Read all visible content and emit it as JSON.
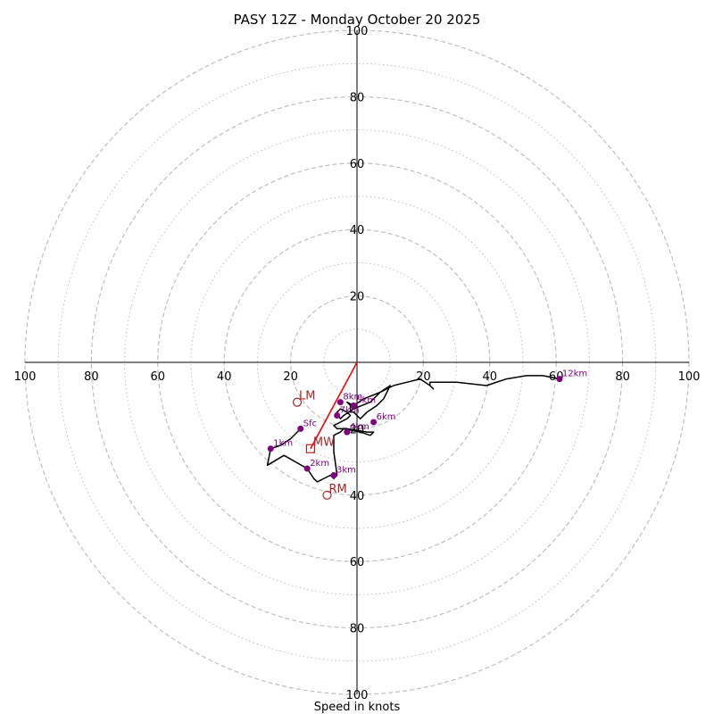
{
  "chart_data": {
    "type": "hodograph",
    "title": "PASY 12Z - Monday October 20 2025",
    "xlabel": "Speed in knots",
    "max_speed": 100,
    "tick_values": [
      20,
      40,
      60,
      80,
      100
    ],
    "major_rings": [
      20,
      40,
      60,
      80,
      100
    ],
    "minor_rings": [
      10,
      30,
      50,
      70,
      90
    ],
    "hodograph_path": [
      [
        -17,
        -20
      ],
      [
        -20,
        -23
      ],
      [
        -23,
        -25
      ],
      [
        -26,
        -26
      ],
      [
        -27,
        -31
      ],
      [
        -22,
        -28
      ],
      [
        -15,
        -32
      ],
      [
        -13,
        -35
      ],
      [
        -12,
        -36
      ],
      [
        -8,
        -34
      ],
      [
        -7,
        -35
      ],
      [
        -6,
        -34
      ],
      [
        -7,
        -27
      ],
      [
        -7,
        -22
      ],
      [
        -5,
        -21
      ],
      [
        -4,
        -20
      ],
      [
        1,
        -21
      ],
      [
        4,
        -22
      ],
      [
        5,
        -21
      ],
      [
        3,
        -21
      ],
      [
        -3,
        -20
      ],
      [
        -6,
        -20
      ],
      [
        -7,
        -19
      ],
      [
        -5,
        -18
      ],
      [
        -3,
        -17
      ],
      [
        -2,
        -16
      ],
      [
        -3,
        -15
      ],
      [
        -5,
        -14
      ],
      [
        -6,
        -15
      ],
      [
        -5,
        -17
      ],
      [
        -4,
        -16
      ],
      [
        -1,
        -14
      ],
      [
        4,
        -12
      ],
      [
        7,
        -9
      ],
      [
        10,
        -7
      ],
      [
        8,
        -11
      ],
      [
        6,
        -13
      ],
      [
        3,
        -15
      ],
      [
        1,
        -17
      ],
      [
        0,
        -16
      ],
      [
        -1,
        -15
      ],
      [
        -2,
        -15
      ],
      [
        -2,
        -13
      ],
      [
        -3,
        -12
      ],
      [
        -1,
        -13
      ],
      [
        2,
        -11
      ],
      [
        7,
        -9
      ],
      [
        11,
        -7
      ],
      [
        15,
        -6
      ],
      [
        19,
        -5
      ],
      [
        22,
        -7
      ],
      [
        23,
        -8
      ],
      [
        22,
        -7
      ],
      [
        22,
        -6
      ],
      [
        30,
        -6
      ],
      [
        39,
        -7
      ],
      [
        45,
        -5
      ],
      [
        51,
        -4
      ],
      [
        56,
        -4
      ],
      [
        61,
        -5
      ]
    ],
    "height_markers": [
      {
        "label": "Sfc",
        "u": -17,
        "v": -20
      },
      {
        "label": "1km",
        "u": -26,
        "v": -26
      },
      {
        "label": "2km",
        "u": -15,
        "v": -32
      },
      {
        "label": "3km",
        "u": -7,
        "v": -34
      },
      {
        "label": "4km",
        "u": -3,
        "v": -21
      },
      {
        "label": "5km",
        "u": -1,
        "v": -13
      },
      {
        "label": "6km",
        "u": 5,
        "v": -18
      },
      {
        "label": "7km",
        "u": -6,
        "v": -16
      },
      {
        "label": "8km",
        "u": -5,
        "v": -12
      },
      {
        "label": "12km",
        "u": 61,
        "v": -5
      }
    ],
    "storm_motion": {
      "LM": {
        "label": "LM",
        "u": -18,
        "v": -12
      },
      "MW": {
        "label": "MW",
        "u": -14,
        "v": -26
      },
      "RM": {
        "label": "RM",
        "u": -9,
        "v": -40
      }
    },
    "shear_vector": {
      "from": [
        0,
        0
      ],
      "to": [
        -14,
        -26
      ]
    },
    "colors": {
      "ring": "#bfbfbf",
      "hodograph": "#000000",
      "marker": "#800080",
      "storm_motion": "#b22222",
      "shear_vector": "#ff0000"
    }
  }
}
